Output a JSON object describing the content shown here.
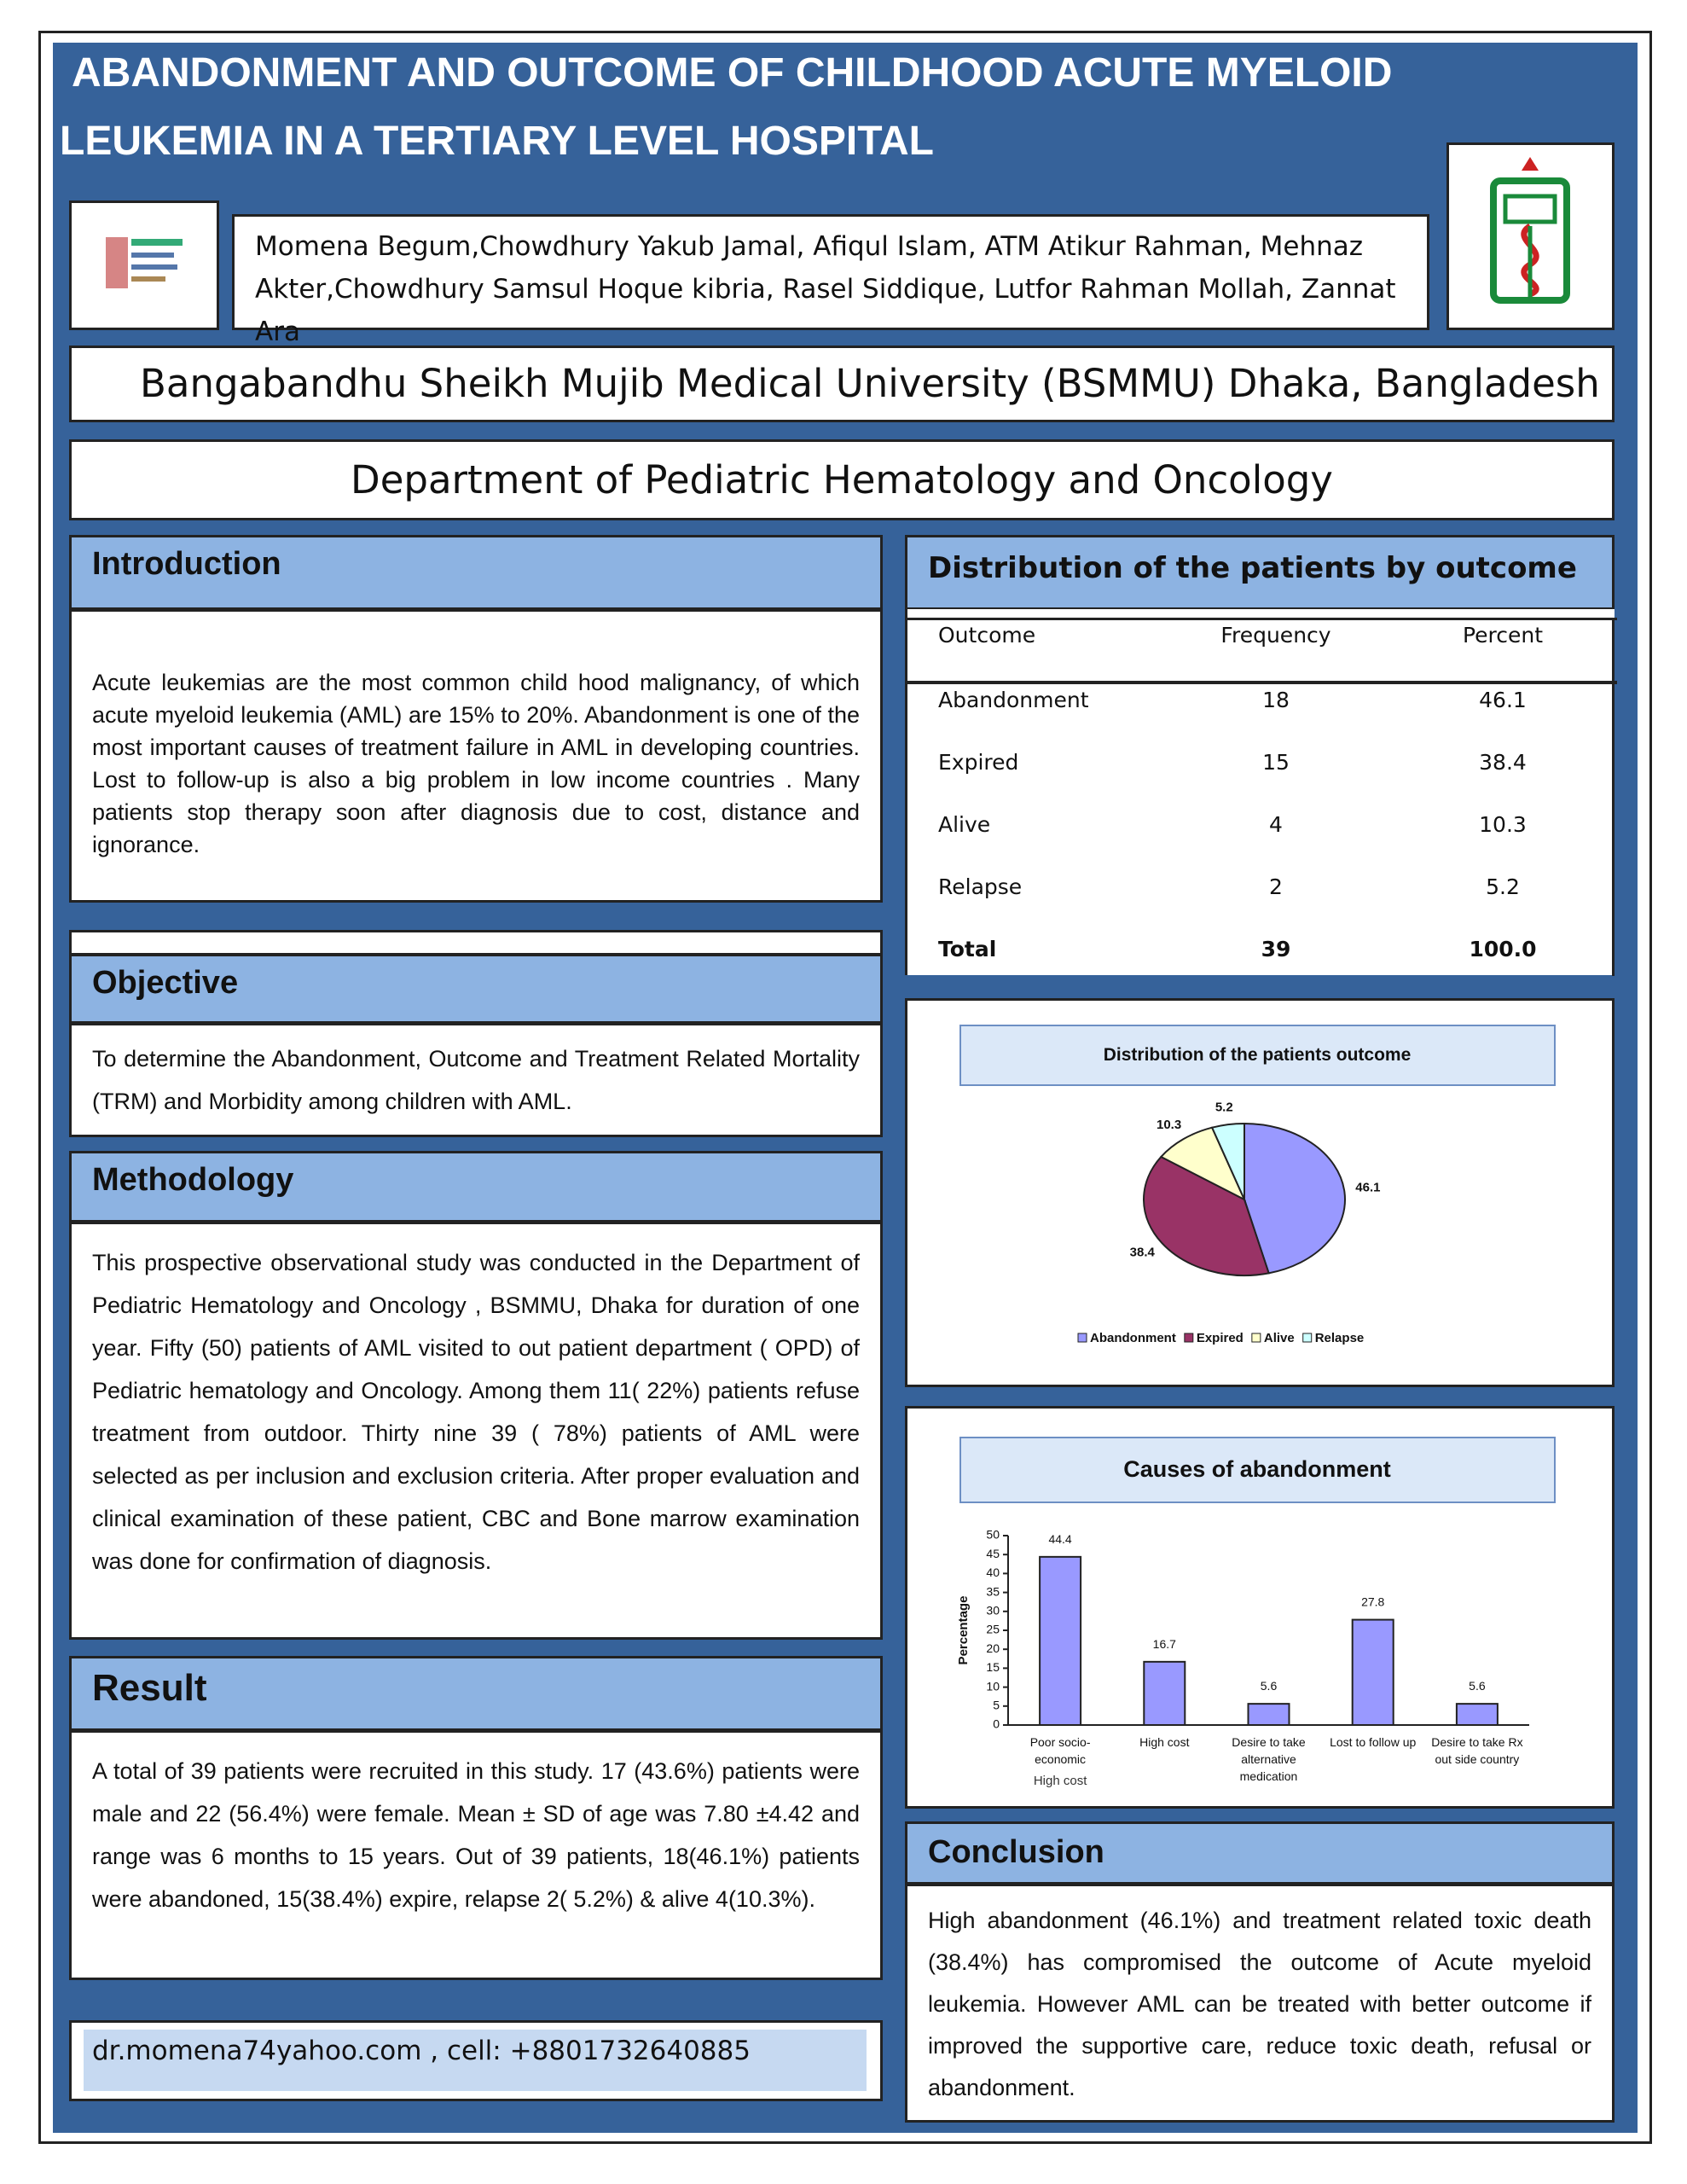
{
  "header": {
    "title_line1": "ABANDONMENT AND OUTCOME OF CHILDHOOD ACUTE MYELOID",
    "title_line2": "LEUKEMIA IN A TERTIARY LEVEL HOSPITAL",
    "authors": "Momena Begum,Chowdhury Yakub Jamal, Afiqul Islam, ATM Atikur Rahman, Mehnaz Akter,Chowdhury Samsul Hoque kibria, Rasel Siddique, Lutfor Rahman Mollah, Zannat Ara",
    "affiliation": "Bangabandhu Sheikh Mujib Medical University (BSMMU) Dhaka, Bangladesh",
    "department": "Department of Pediatric Hematology and Oncology"
  },
  "introduction": {
    "heading": "Introduction",
    "text": "Acute leukemias are the most common child hood malignancy, of which acute myeloid leukemia (AML) are 15% to 20%. Abandonment is one of the most important causes of treatment failure in AML in developing countries. Lost to follow-up is also a big problem in low income countries . Many patients stop therapy soon after diagnosis due to cost, distance and ignorance."
  },
  "objective": {
    "heading": "Objective",
    "text": "To determine the Abandonment, Outcome and Treatment Related Mortality (TRM) and Morbidity among children with AML."
  },
  "methodology": {
    "heading": "Methodology",
    "text": "This prospective observational study was conducted in the Department of Pediatric Hematology and Oncology , BSMMU, Dhaka for duration of one year. Fifty (50) patients of AML visited to out patient department ( OPD) of Pediatric hematology and Oncology. Among them 11( 22%) patients refuse treatment from outdoor. Thirty nine 39 ( 78%) patients of AML were selected as per inclusion and exclusion criteria. After proper evaluation and clinical examination of these patient, CBC and Bone marrow examination was done for confirmation of diagnosis."
  },
  "result": {
    "heading": "Result",
    "text": "A total of 39 patients were recruited in this study. 17 (43.6%) patients were male and 22 (56.4%) were female. Mean ± SD of age was 7.80 ±4.42 and range was 6 months to 15 years. Out of 39 patients, 18(46.1%) patients were abandoned, 15(38.4%) expire, relapse 2( 5.2%) & alive 4(10.3%)."
  },
  "contact": "dr.momena74yahoo.com  , cell: +8801732640885",
  "table": {
    "heading": "Distribution of the patients by outcome",
    "header": [
      "Outcome",
      "Frequency",
      "Percent"
    ],
    "rows": [
      [
        "Abandonment",
        "18",
        "46.1"
      ],
      [
        "Expired",
        "15",
        "38.4"
      ],
      [
        "Alive",
        "4",
        "10.3"
      ],
      [
        "Relapse",
        "2",
        "5.2"
      ],
      [
        "Total",
        "39",
        "100.0"
      ]
    ]
  },
  "chart_data": [
    {
      "type": "pie",
      "title": "Distribution of the patients outcome",
      "categories": [
        "Abandonment",
        "Expired",
        "Alive",
        "Relapse"
      ],
      "values": [
        46.1,
        38.4,
        10.3,
        5.2
      ],
      "colors": [
        "#9999ff",
        "#993366",
        "#ffffcc",
        "#ccffff"
      ],
      "legend": "bottom"
    },
    {
      "type": "bar",
      "title": "Causes of abandonment",
      "ylabel": "Percentage",
      "xlabel": "High cost",
      "categories": [
        "Poor socio-economic",
        "High cost",
        "Desire to take alternative medication",
        "Lost to follow up",
        "Desire to take Rx out side country"
      ],
      "values": [
        44.4,
        16.7,
        5.6,
        27.8,
        5.6
      ],
      "color": "#9999ff",
      "ylim": [
        0,
        50
      ],
      "yticks": [
        0,
        5,
        10,
        15,
        20,
        25,
        30,
        35,
        40,
        45,
        50
      ]
    }
  ],
  "conclusion": {
    "heading": "Conclusion",
    "text": "High abandonment (46.1%) and treatment related toxic death (38.4%) has compromised the outcome of Acute myeloid leukemia. However AML can be treated with better outcome if improved the supportive care, reduce toxic death, refusal or abandonment."
  }
}
